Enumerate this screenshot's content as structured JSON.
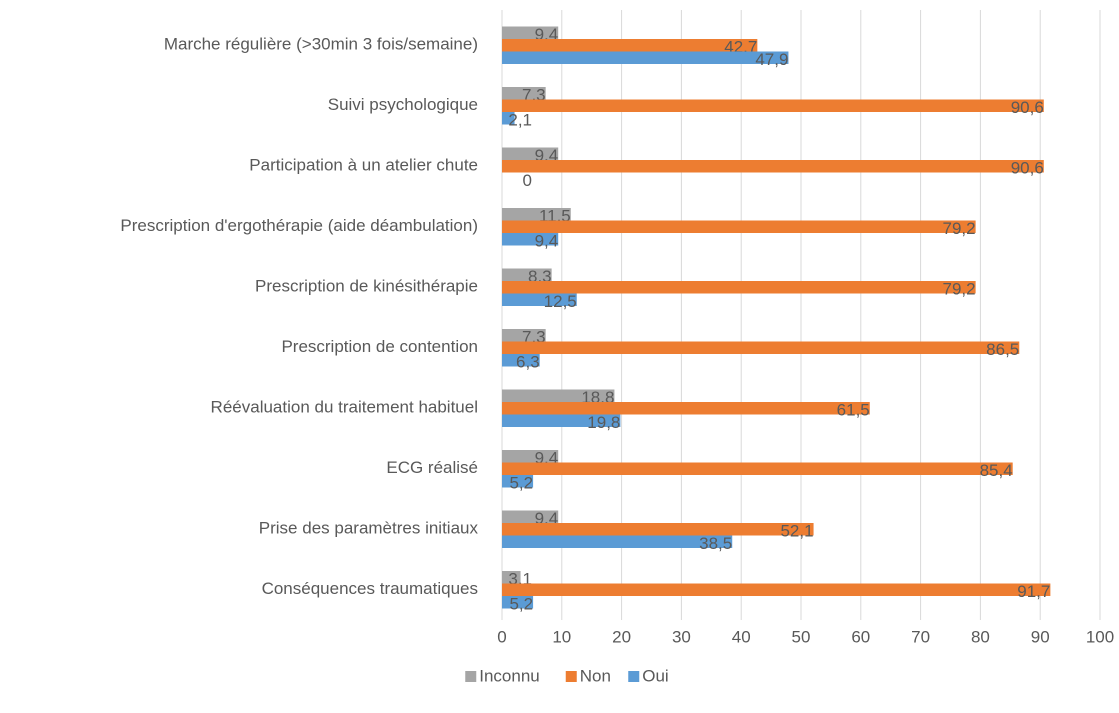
{
  "chart_data": {
    "type": "bar",
    "orientation": "horizontal",
    "categories": [
      "Marche régulière (>30min 3 fois/semaine)",
      "Suivi psychologique",
      "Participation à un atelier chute",
      "Prescription d'ergothérapie (aide déambulation)",
      "Prescription de kinésithérapie",
      "Prescription de contention",
      "Réévaluation du traitement habituel",
      "ECG réalisé",
      "Prise des paramètres initiaux",
      "Conséquences traumatiques"
    ],
    "series": [
      {
        "name": "Inconnu",
        "color": "#a5a5a5",
        "values": [
          9.4,
          7.3,
          9.4,
          11.5,
          8.3,
          7.3,
          18.8,
          9.4,
          9.4,
          3.1
        ],
        "value_labels": [
          "9,4",
          "7,3",
          "9,4",
          "11,5",
          "8,3",
          "7,3",
          "18,8",
          "9,4",
          "9,4",
          "3,1"
        ]
      },
      {
        "name": "Non",
        "color": "#ed7d31",
        "values": [
          42.7,
          90.6,
          90.6,
          79.2,
          79.2,
          86.5,
          61.5,
          85.4,
          52.1,
          91.7
        ],
        "value_labels": [
          "42,7",
          "90,6",
          "90,6",
          "79,2",
          "79,2",
          "86,5",
          "61,5",
          "85,4",
          "52,1",
          "91,7"
        ]
      },
      {
        "name": "Oui",
        "color": "#5b9bd5",
        "values": [
          47.9,
          2.1,
          0,
          9.4,
          12.5,
          6.3,
          19.8,
          5.2,
          38.5,
          5.2
        ],
        "value_labels": [
          "47,9",
          "2,1",
          "0",
          "9,4",
          "12,5",
          "6,3",
          "19,8",
          "5,2",
          "38,5",
          "5,2"
        ]
      }
    ],
    "xlim": [
      0,
      100
    ],
    "xticks": [
      0,
      10,
      20,
      30,
      40,
      50,
      60,
      70,
      80,
      90,
      100
    ],
    "grid": true,
    "legend": "bottom"
  }
}
